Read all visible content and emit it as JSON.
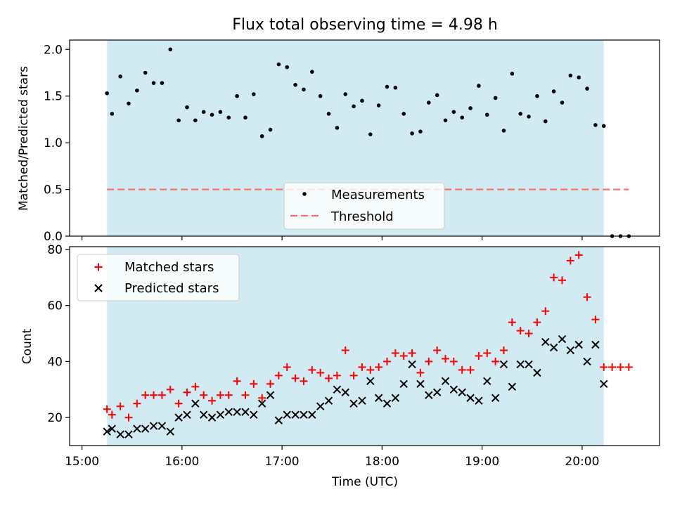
{
  "chart_data": {
    "type": "scatter",
    "title": "Flux total observing time = 4.98 h",
    "xlabel": "Time (UTC)",
    "x_ticks": [
      "15:00",
      "16:00",
      "17:00",
      "18:00",
      "19:00",
      "20:00"
    ],
    "shaded_span_x": [
      "15:15",
      "20:13"
    ],
    "shade_color": "#add8e6",
    "panels": [
      {
        "ylabel": "Matched/Predicted stars",
        "ylim": [
          0,
          2.1
        ],
        "y_ticks": [
          "0.0",
          "0.5",
          "1.0",
          "1.5",
          "2.0"
        ],
        "legend_position": "lower center",
        "series": [
          {
            "name": "Measurements",
            "marker": "dot",
            "color": "#000000",
            "x": [
              "15:15",
              "15:18",
              "15:23",
              "15:28",
              "15:33",
              "15:38",
              "15:43",
              "15:48",
              "15:53",
              "15:58",
              "16:03",
              "16:08",
              "16:13",
              "16:18",
              "16:23",
              "16:28",
              "16:33",
              "16:38",
              "16:43",
              "16:48",
              "16:53",
              "16:58",
              "17:03",
              "17:08",
              "17:13",
              "17:18",
              "17:23",
              "17:28",
              "17:33",
              "17:38",
              "17:43",
              "17:48",
              "17:53",
              "17:58",
              "18:03",
              "18:08",
              "18:13",
              "18:18",
              "18:23",
              "18:28",
              "18:33",
              "18:38",
              "18:43",
              "18:48",
              "18:53",
              "18:58",
              "19:03",
              "19:08",
              "19:13",
              "19:18",
              "19:23",
              "19:28",
              "19:33",
              "19:38",
              "19:43",
              "19:48",
              "19:53",
              "19:58",
              "20:03",
              "20:08",
              "20:13",
              "20:18",
              "20:23",
              "20:28"
            ],
            "y": [
              1.53,
              1.31,
              1.71,
              1.42,
              1.56,
              1.75,
              1.64,
              1.64,
              2.0,
              1.24,
              1.38,
              1.24,
              1.33,
              1.3,
              1.33,
              1.27,
              1.5,
              1.27,
              1.52,
              1.07,
              1.14,
              1.84,
              1.81,
              1.62,
              1.57,
              1.76,
              1.5,
              1.31,
              1.16,
              1.52,
              1.39,
              1.45,
              1.09,
              1.4,
              1.6,
              1.59,
              1.31,
              1.1,
              1.12,
              1.43,
              1.51,
              1.24,
              1.33,
              1.27,
              1.37,
              1.61,
              1.3,
              1.48,
              1.13,
              1.74,
              1.31,
              1.28,
              1.5,
              1.23,
              1.55,
              1.43,
              1.72,
              1.7,
              1.58,
              1.19,
              1.18,
              0.0,
              0.0,
              0.0
            ]
          },
          {
            "name": "Threshold",
            "marker": "dashed-line",
            "color": "#ff6b6b",
            "x": [
              "15:15",
              "20:28"
            ],
            "y": [
              0.5,
              0.5
            ]
          }
        ]
      },
      {
        "ylabel": "Count",
        "ylim": [
          10,
          81
        ],
        "y_ticks": [
          "20",
          "40",
          "60",
          "80"
        ],
        "legend_position": "upper left",
        "series": [
          {
            "name": "Matched stars",
            "marker": "plus",
            "color": "#ff0000",
            "x": [
              "15:15",
              "15:18",
              "15:23",
              "15:28",
              "15:33",
              "15:38",
              "15:43",
              "15:48",
              "15:53",
              "15:58",
              "16:03",
              "16:08",
              "16:13",
              "16:18",
              "16:23",
              "16:28",
              "16:33",
              "16:38",
              "16:43",
              "16:48",
              "16:53",
              "16:58",
              "17:03",
              "17:08",
              "17:13",
              "17:18",
              "17:23",
              "17:28",
              "17:33",
              "17:38",
              "17:43",
              "17:48",
              "17:53",
              "17:58",
              "18:03",
              "18:08",
              "18:13",
              "18:18",
              "18:23",
              "18:28",
              "18:33",
              "18:38",
              "18:43",
              "18:48",
              "18:53",
              "18:58",
              "19:03",
              "19:08",
              "19:13",
              "19:18",
              "19:23",
              "19:28",
              "19:33",
              "19:38",
              "19:43",
              "19:48",
              "19:53",
              "19:58",
              "20:03",
              "20:08",
              "20:13",
              "20:18",
              "20:23",
              "20:28"
            ],
            "y": [
              23,
              21,
              24,
              20,
              25,
              28,
              28,
              28,
              30,
              25,
              29,
              31,
              28,
              26,
              28,
              28,
              33,
              28,
              32,
              27,
              32,
              35,
              38,
              34,
              33,
              37,
              36,
              34,
              35,
              44,
              35,
              38,
              37,
              38,
              40,
              43,
              42,
              43,
              36,
              40,
              44,
              41,
              40,
              37,
              37,
              42,
              43,
              40,
              44,
              54,
              51,
              50,
              54,
              58,
              70,
              69,
              76,
              78,
              63,
              55,
              38,
              38,
              38,
              38
            ]
          },
          {
            "name": "Predicted stars",
            "marker": "x",
            "color": "#000000",
            "x": [
              "15:15",
              "15:18",
              "15:23",
              "15:28",
              "15:33",
              "15:38",
              "15:43",
              "15:48",
              "15:53",
              "15:58",
              "16:03",
              "16:08",
              "16:13",
              "16:18",
              "16:23",
              "16:28",
              "16:33",
              "16:38",
              "16:43",
              "16:48",
              "16:53",
              "16:58",
              "17:03",
              "17:08",
              "17:13",
              "17:18",
              "17:23",
              "17:28",
              "17:33",
              "17:38",
              "17:43",
              "17:48",
              "17:53",
              "17:58",
              "18:03",
              "18:08",
              "18:13",
              "18:18",
              "18:23",
              "18:28",
              "18:33",
              "18:38",
              "18:43",
              "18:48",
              "18:53",
              "18:58",
              "19:03",
              "19:08",
              "19:13",
              "19:18",
              "19:23",
              "19:28",
              "19:33",
              "19:38",
              "19:43",
              "19:48",
              "19:53",
              "19:58",
              "20:03",
              "20:08",
              "20:13"
            ],
            "y": [
              15,
              16,
              14,
              14,
              16,
              16,
              17,
              17,
              15,
              20,
              21,
              25,
              21,
              20,
              21,
              22,
              22,
              22,
              21,
              25,
              28,
              19,
              21,
              21,
              21,
              21,
              24,
              26,
              30,
              29,
              25,
              26,
              33,
              27,
              25,
              27,
              32,
              39,
              32,
              28,
              29,
              33,
              30,
              29,
              27,
              26,
              33,
              27,
              39,
              31,
              39,
              39,
              36,
              47,
              45,
              48,
              44,
              46,
              40,
              46,
              32
            ]
          }
        ]
      }
    ]
  }
}
